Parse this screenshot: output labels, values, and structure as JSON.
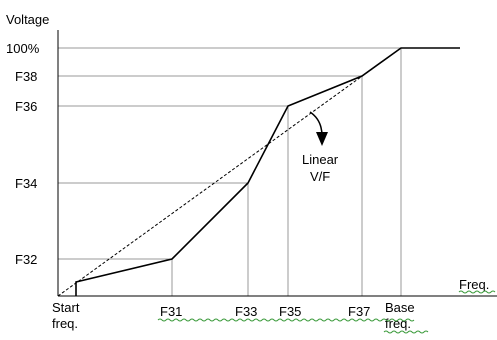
{
  "y_axis_title": "Voltage",
  "x_axis_title": "Freq.",
  "y_ticks": [
    "100%",
    "F38",
    "F36",
    "F34",
    "F32"
  ],
  "x_ticks": [
    {
      "line1": "Start",
      "line2": "freq."
    },
    {
      "line1": "F31",
      "line2": ""
    },
    {
      "line1": "F33",
      "line2": ""
    },
    {
      "line1": "F35",
      "line2": ""
    },
    {
      "line1": "F37",
      "line2": ""
    },
    {
      "line1": "Base",
      "line2": "freq."
    }
  ],
  "annotation": {
    "line1": "Linear",
    "line2": "V/F"
  },
  "colors": {
    "line": "#000000",
    "grid": "#9a9a9a",
    "axis": "#000000",
    "spellcheck": "#3a9a3a"
  }
}
